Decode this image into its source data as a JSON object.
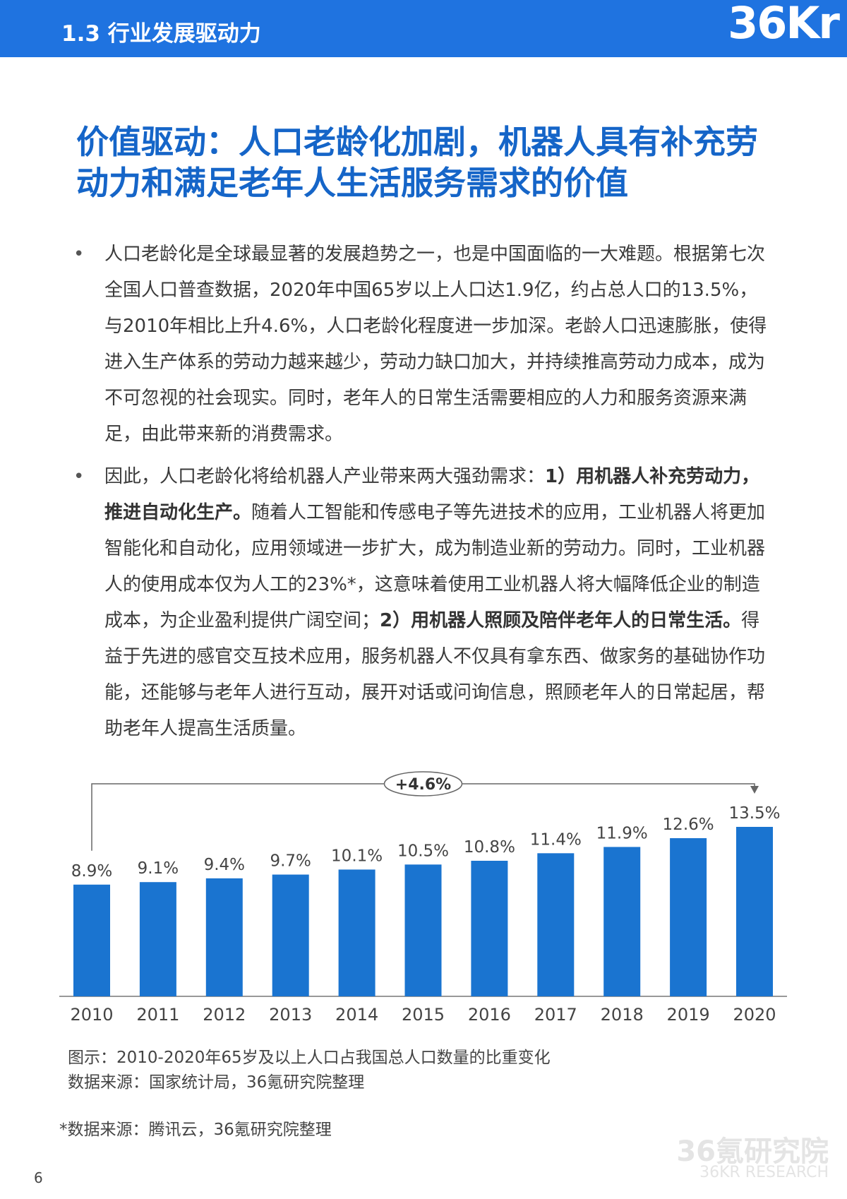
{
  "header": {
    "section": "1.3 行业发展驱动力",
    "logo": "36Kr"
  },
  "title": "价值驱动：人口老龄化加剧，机器人具有补充劳动力和满足老年人生活服务需求的价值",
  "bullets": [
    [
      {
        "text": "人口老龄化是全球最显著的发展趋势之一，也是中国面临的一大难题。根据第七次全国人口普查数据，2020年中国65岁以上人口达1.9亿，约占总人口的13.5%，与2010年相比上升4.6%，人口老龄化程度进一步加深。老龄人口迅速膨胀，使得进入生产体系的劳动力越来越少，劳动力缺口加大，并持续推高劳动力成本，成为不可忽视的社会现实。同时，老年人的日常生活需要相应的人力和服务资源来满足，由此带来新的消费需求。",
        "bold": false
      }
    ],
    [
      {
        "text": "因此，人口老龄化将给机器人产业带来两大强劲需求：",
        "bold": false
      },
      {
        "text": "1）用机器人补充劳动力，推进自动化生产。",
        "bold": true
      },
      {
        "text": "随着人工智能和传感电子等先进技术的应用，工业机器人将更加智能化和自动化，应用领域进一步扩大，成为制造业新的劳动力。同时，工业机器人的使用成本仅为人工的23%*，这意味着使用工业机器人将大幅降低企业的制造成本，为企业盈利提供广阔空间；",
        "bold": false
      },
      {
        "text": "2）用机器人照顾及陪伴老年人的日常生活。",
        "bold": true
      },
      {
        "text": "得益于先进的感官交互技术应用，服务机器人不仅具有拿东西、做家务的基础协作功能，还能够与老年人进行互动，展开对话或问询信息，照顾老年人的日常起居，帮助老年人提高生活质量。",
        "bold": false
      }
    ]
  ],
  "chart_data": {
    "type": "bar",
    "categories": [
      "2010",
      "2011",
      "2012",
      "2013",
      "2014",
      "2015",
      "2016",
      "2017",
      "2018",
      "2019",
      "2020"
    ],
    "values": [
      8.9,
      9.1,
      9.4,
      9.7,
      10.1,
      10.5,
      10.8,
      11.4,
      11.9,
      12.6,
      13.5
    ],
    "value_labels": [
      "8.9%",
      "9.1%",
      "9.4%",
      "9.7%",
      "10.1%",
      "10.5%",
      "10.8%",
      "11.4%",
      "11.9%",
      "12.6%",
      "13.5%"
    ],
    "color": "#1a74d0",
    "annotation": "+4.6%"
  },
  "caption": "图示：2010-2020年65岁及以上人口占我国总人口数量的比重变化",
  "source": "数据来源：国家统计局，36氪研究院整理",
  "footnote": "*数据来源：腾讯云，36氪研究院整理",
  "watermark": {
    "name": "36氪研究院",
    "sub": "36KR RESEARCH"
  },
  "page_number": "6"
}
